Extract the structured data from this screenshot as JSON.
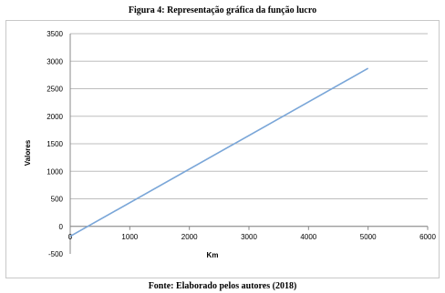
{
  "figure": {
    "title": "Figura 4: Representação gráfica da função lucro",
    "source": "Fonte: Elaborado pelos autores (2018)"
  },
  "chart_data": {
    "type": "line",
    "xlabel": "Km",
    "ylabel": "Valores",
    "xlim": [
      0,
      6000
    ],
    "ylim": [
      -500,
      3500
    ],
    "x_ticks": [
      0,
      1000,
      2000,
      3000,
      4000,
      5000,
      6000
    ],
    "y_ticks": [
      -500,
      0,
      500,
      1000,
      1500,
      2000,
      2500,
      3000,
      3500
    ],
    "x_tick_labels": [
      "0",
      "1000",
      "2000",
      "3000",
      "4000",
      "5000",
      "6000"
    ],
    "y_tick_labels": [
      "-500",
      "0",
      "500",
      "1000",
      "1500",
      "2000",
      "2500",
      "3000",
      "3500"
    ],
    "grid": "horizontal",
    "legend": "none",
    "series": [
      {
        "x": [
          0,
          5000
        ],
        "y": [
          -180,
          2870
        ],
        "color": "#7aa6d8"
      }
    ]
  }
}
